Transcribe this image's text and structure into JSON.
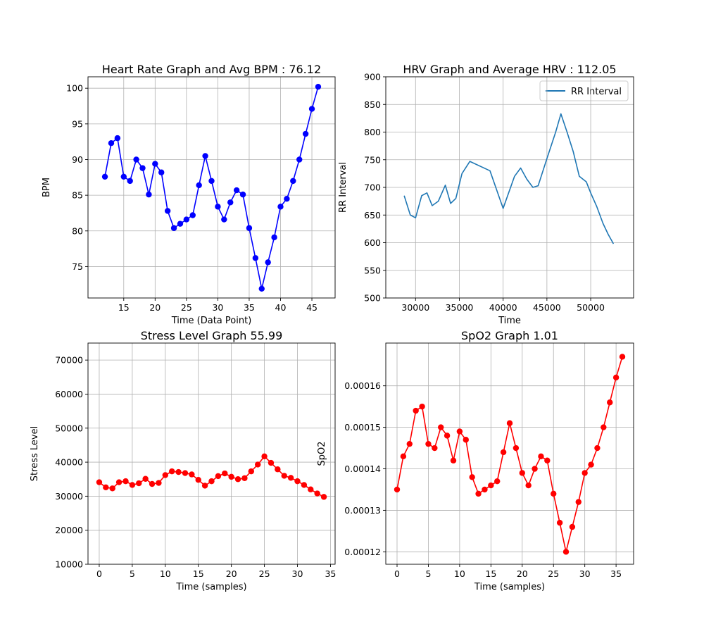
{
  "chart_data": [
    {
      "type": "line",
      "title": "Heart Rate Graph and Avg BPM : 76.12",
      "xlabel": "Time (Data Point)",
      "ylabel": "BPM",
      "xlim": [
        9.3,
        48.7
      ],
      "ylim": [
        70.6,
        101.6
      ],
      "xticks": [
        15,
        20,
        25,
        30,
        35,
        40,
        45
      ],
      "yticks": [
        75,
        80,
        85,
        90,
        95,
        100
      ],
      "grid": true,
      "color": "#0000ff",
      "marker": "circle",
      "series": [
        {
          "x": [
            12,
            13,
            14,
            15,
            16,
            17,
            18,
            19,
            20,
            21,
            22,
            23,
            24,
            25,
            26,
            27,
            28,
            29,
            30,
            31,
            32,
            33,
            34,
            35,
            36,
            37,
            38,
            39,
            40,
            41,
            42,
            43,
            44,
            45,
            46
          ],
          "values": [
            87.6,
            92.3,
            93.0,
            87.6,
            87.0,
            90.0,
            88.8,
            85.1,
            89.4,
            88.2,
            82.8,
            80.4,
            81.0,
            81.6,
            82.2,
            86.4,
            90.5,
            87.0,
            83.4,
            81.6,
            84.0,
            85.7,
            85.1,
            80.4,
            76.2,
            71.9,
            75.6,
            79.1,
            83.4,
            84.5,
            87.0,
            90.0,
            93.6,
            97.1,
            100.2
          ]
        }
      ]
    },
    {
      "type": "line",
      "title": "HRV Graph and Average HRV : 112.05",
      "xlabel": "Time",
      "ylabel": "RR Interval",
      "xlim": [
        26600,
        54900
      ],
      "ylim": [
        500,
        900
      ],
      "xticks": [
        30000,
        35000,
        40000,
        45000,
        50000
      ],
      "yticks": [
        500,
        550,
        600,
        650,
        700,
        750,
        800,
        850,
        900
      ],
      "grid": true,
      "legend_position": "top-right",
      "color": "#1f77b4",
      "series": [
        {
          "name": "RR Interval",
          "x": [
            28700,
            29400,
            30000,
            30700,
            31300,
            31900,
            32600,
            33400,
            34000,
            34600,
            35300,
            36200,
            38500,
            40000,
            41300,
            42000,
            42700,
            43400,
            44000,
            45000,
            46000,
            46600,
            47300,
            48000,
            48700,
            49500,
            50000,
            50700,
            51400,
            52000,
            52600
          ],
          "values": [
            685,
            650,
            645,
            685,
            690,
            667,
            675,
            704,
            671,
            680,
            725,
            747,
            730,
            662,
            720,
            735,
            715,
            700,
            703,
            752,
            800,
            833,
            800,
            765,
            720,
            710,
            690,
            665,
            635,
            615,
            598
          ]
        }
      ]
    },
    {
      "type": "line",
      "title": "Stress Level Graph 55.99",
      "xlabel": "Time (samples)",
      "ylabel": "Stress Level",
      "xlim": [
        -1.7,
        35.7
      ],
      "ylim": [
        10000,
        75000
      ],
      "xticks": [
        0,
        5,
        10,
        15,
        20,
        25,
        30,
        35
      ],
      "yticks": [
        10000,
        20000,
        30000,
        40000,
        50000,
        60000,
        70000
      ],
      "grid": true,
      "color": "#ff0000",
      "marker": "circle",
      "series": [
        {
          "x": [
            0,
            1,
            2,
            3,
            4,
            5,
            6,
            7,
            8,
            9,
            10,
            11,
            12,
            13,
            14,
            15,
            16,
            17,
            18,
            19,
            20,
            21,
            22,
            23,
            24,
            25,
            26,
            27,
            28,
            29,
            30,
            31,
            32,
            33,
            34
          ],
          "values": [
            34100,
            32600,
            32300,
            34100,
            34400,
            33300,
            33800,
            35100,
            33600,
            33900,
            36200,
            37300,
            37100,
            36800,
            36400,
            34800,
            33100,
            34400,
            35900,
            36700,
            35700,
            35000,
            35300,
            37300,
            39300,
            41700,
            39800,
            37900,
            36000,
            35400,
            34400,
            33300,
            32000,
            30800,
            29800
          ]
        }
      ]
    },
    {
      "type": "line",
      "title": "SpO2 Graph 1.01",
      "xlabel": "Time (samples)",
      "ylabel": "SpO2",
      "xlim": [
        -1.8,
        37.8
      ],
      "ylim": [
        0.000117,
        0.0001703
      ],
      "xticks": [
        0,
        5,
        10,
        15,
        20,
        25,
        30,
        35
      ],
      "yticks": [
        0.00012,
        0.00013,
        0.00014,
        0.00015,
        0.00016
      ],
      "grid": true,
      "color": "#ff0000",
      "marker": "circle",
      "series": [
        {
          "x": [
            0,
            1,
            2,
            3,
            4,
            5,
            6,
            7,
            8,
            9,
            10,
            11,
            12,
            13,
            14,
            15,
            16,
            17,
            18,
            19,
            20,
            21,
            22,
            23,
            24,
            25,
            26,
            27,
            28,
            29,
            30,
            31,
            32,
            33,
            34,
            35,
            36
          ],
          "values": [
            0.000135,
            0.000143,
            0.000146,
            0.000154,
            0.000155,
            0.000146,
            0.000145,
            0.00015,
            0.000148,
            0.000142,
            0.000149,
            0.000147,
            0.000138,
            0.000134,
            0.000135,
            0.000136,
            0.000137,
            0.000144,
            0.000151,
            0.000145,
            0.000139,
            0.000136,
            0.00014,
            0.000143,
            0.000142,
            0.000134,
            0.000127,
            0.00012,
            0.000126,
            0.000132,
            0.000139,
            0.000141,
            0.000145,
            0.00015,
            0.000156,
            0.000162,
            0.000167
          ]
        }
      ]
    }
  ]
}
